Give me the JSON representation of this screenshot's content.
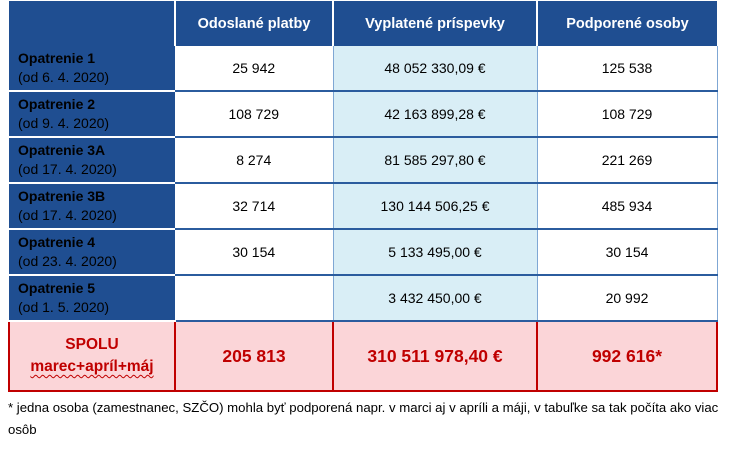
{
  "table": {
    "columns": [
      "Odoslané platby",
      "Vyplatené príspevky",
      "Podporené osoby"
    ],
    "rows": [
      {
        "name": "Opatrenie 1",
        "date": "(od 6. 4. 2020)",
        "platby": "25 942",
        "prispevky": "48 052 330,09 €",
        "osoby": "125 538"
      },
      {
        "name": "Opatrenie 2",
        "date": "(od 9. 4. 2020)",
        "platby": "108 729",
        "prispevky": "42 163 899,28 €",
        "osoby": "108 729"
      },
      {
        "name": "Opatrenie 3A",
        "date": "(od 17. 4. 2020)",
        "platby": "8 274",
        "prispevky": "81 585 297,80 €",
        "osoby": "221 269"
      },
      {
        "name": "Opatrenie 3B",
        "date": "(od 17. 4. 2020)",
        "platby": "32 714",
        "prispevky": "130 144 506,25 €",
        "osoby": "485 934"
      },
      {
        "name": "Opatrenie 4",
        "date": "(od 23. 4. 2020)",
        "platby": "30 154",
        "prispevky": "5 133 495,00 €",
        "osoby": "30 154"
      },
      {
        "name": "Opatrenie 5",
        "date": "(od 1. 5. 2020)",
        "platby": "",
        "prispevky": "3 432 450,00 €",
        "osoby": "20 992"
      }
    ],
    "total": {
      "label_line1": "SPOLU",
      "label_line2": "marec+apríl+máj",
      "platby": "205 813",
      "prispevky": "310 511 978,40 €",
      "osoby": "992 616*"
    }
  },
  "footnote": "* jedna osoba (zamestnanec, SZČO) mohla byť podporená napr. v marci aj v apríli a máji, v tabuľke sa tak počíta ako viac osôb"
}
